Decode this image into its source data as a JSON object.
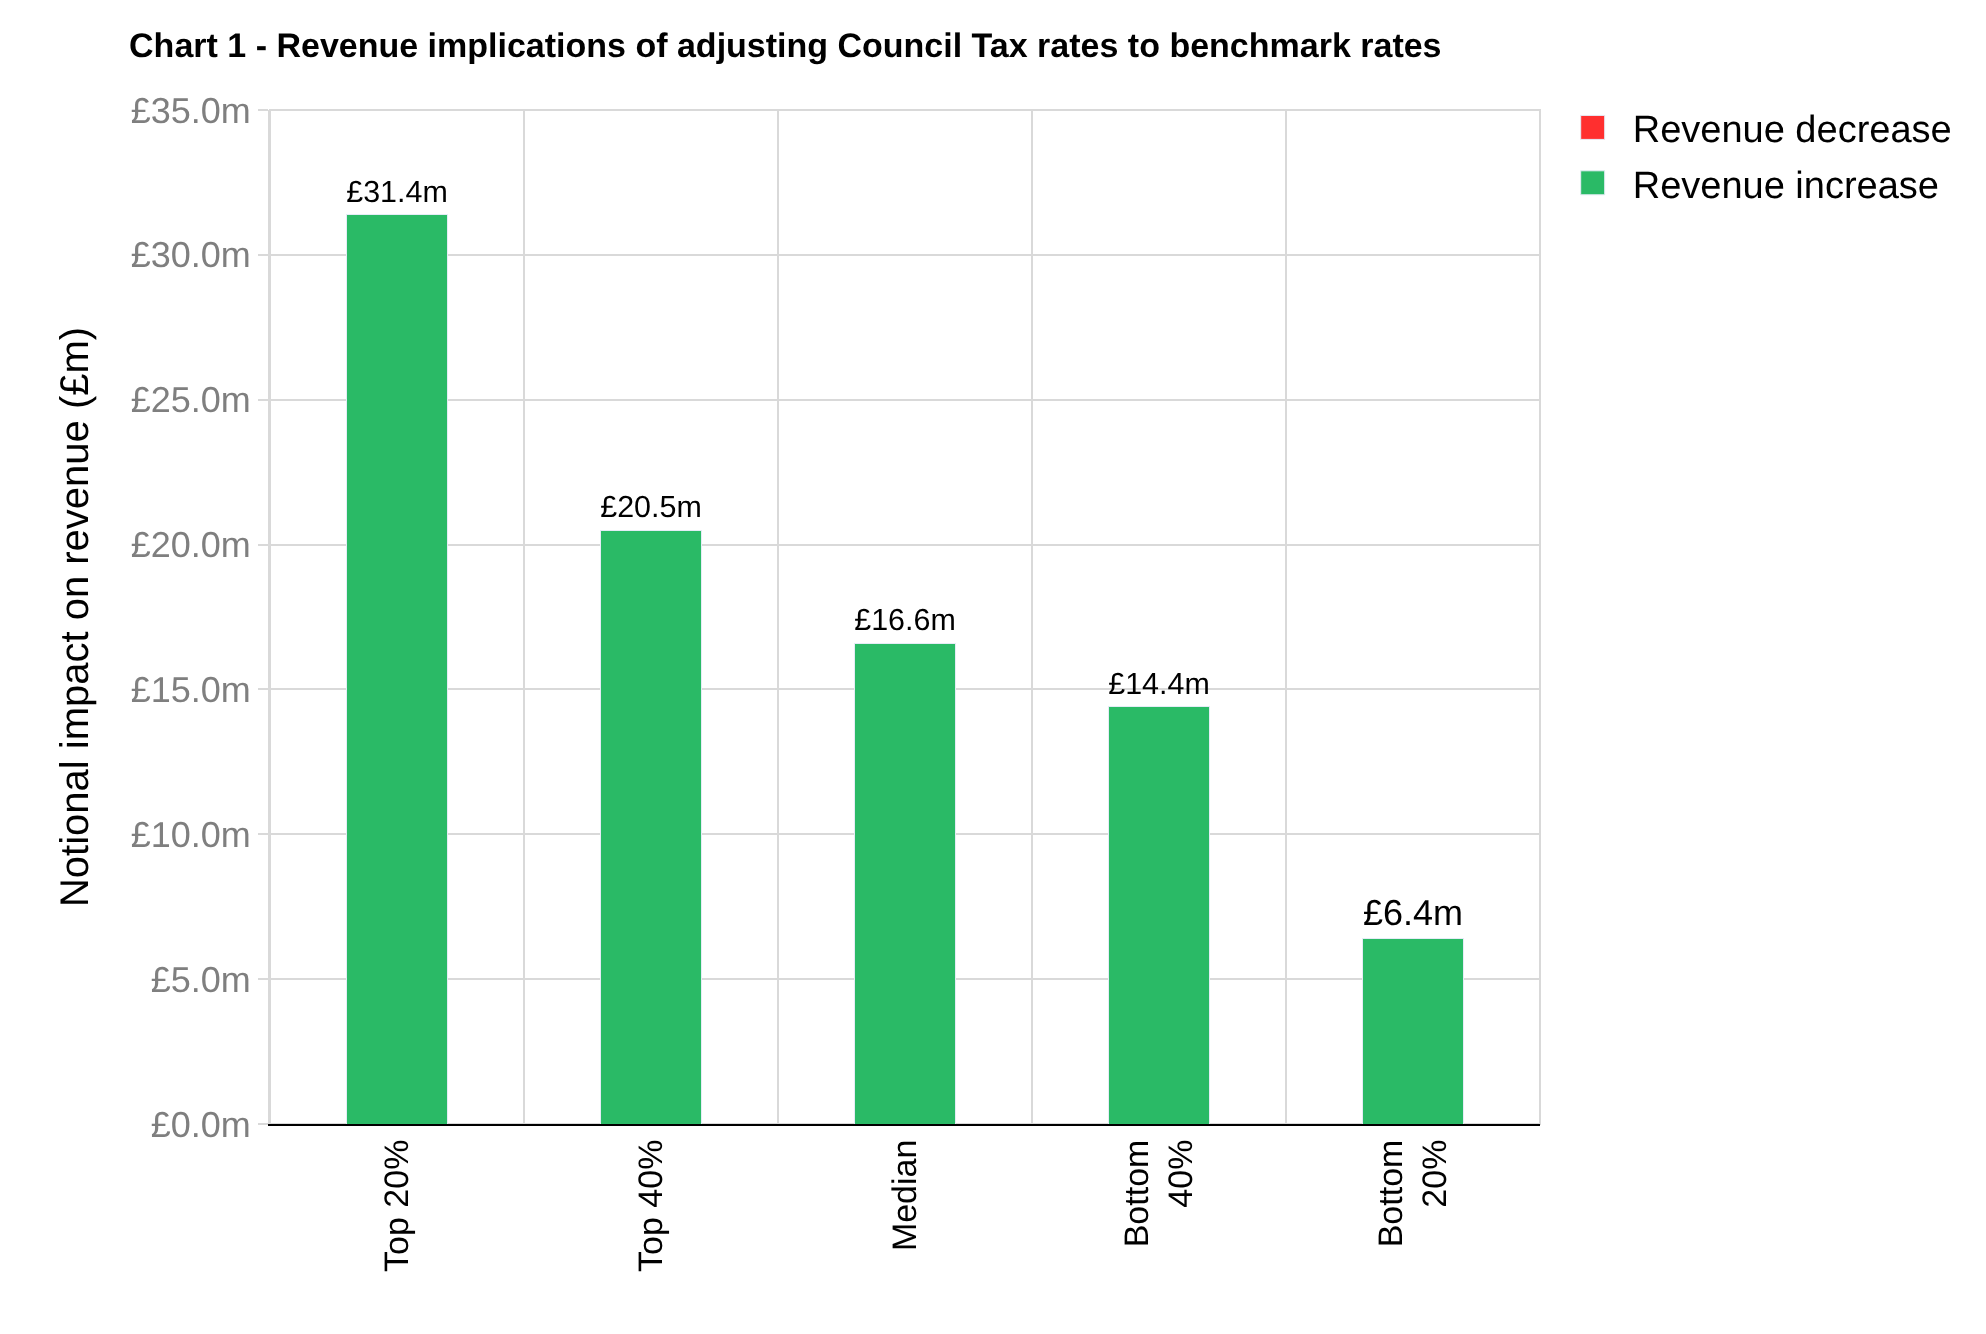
{
  "chart_data": {
    "type": "bar",
    "title": "Chart 1 - Revenue implications of adjusting Council Tax rates to benchmark rates",
    "ylabel": "Notional impact on revenue (£m)",
    "categories": [
      "Top 20%",
      "Top 40%",
      "Median",
      "Bottom 40%",
      "Bottom 20%"
    ],
    "series": [
      {
        "name": "Revenue increase",
        "color": "#2aba66",
        "values": [
          31.4,
          20.5,
          16.6,
          14.4,
          6.4
        ],
        "value_labels": [
          "£31.4m",
          "£20.5m",
          "£16.6m",
          "£14.4m",
          "£6.4m"
        ]
      },
      {
        "name": "Revenue decrease",
        "color": "#ff2f2f",
        "values": [
          null,
          null,
          null,
          null,
          null
        ]
      }
    ],
    "stacked": true,
    "ylim": [
      0,
      35
    ],
    "yticks": [
      {
        "value": 0,
        "label": "£0.0m"
      },
      {
        "value": 5,
        "label": "£5.0m"
      },
      {
        "value": 10,
        "label": "£10.0m"
      },
      {
        "value": 15,
        "label": "£15.0m"
      },
      {
        "value": 20,
        "label": "£20.0m"
      },
      {
        "value": 25,
        "label": "£25.0m"
      },
      {
        "value": 30,
        "label": "£30.0m"
      },
      {
        "value": 35,
        "label": "£35.0m"
      }
    ],
    "grid": true,
    "legend": "top right"
  }
}
